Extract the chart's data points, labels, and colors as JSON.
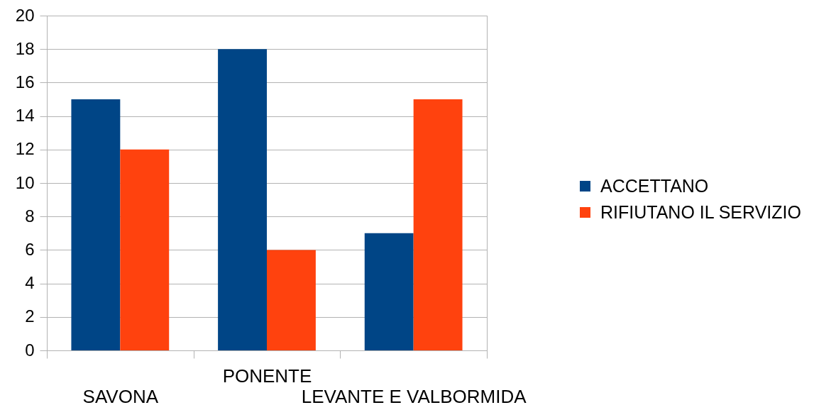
{
  "chart_data": {
    "type": "bar",
    "categories": [
      "SAVONA",
      "PONENTE",
      "LEVANTE E VALBORMIDA"
    ],
    "series": [
      {
        "name": "ACCETTANO",
        "color": "#004586",
        "values": [
          15,
          18,
          7
        ]
      },
      {
        "name": "RIFIUTANO IL SERVIZIO",
        "color": "#ff420e",
        "values": [
          12,
          6,
          15
        ]
      }
    ],
    "ylim": [
      0,
      20
    ],
    "yticks": [
      0,
      2,
      4,
      6,
      8,
      10,
      12,
      14,
      16,
      18,
      20
    ],
    "grid": "y",
    "legend": "right"
  }
}
